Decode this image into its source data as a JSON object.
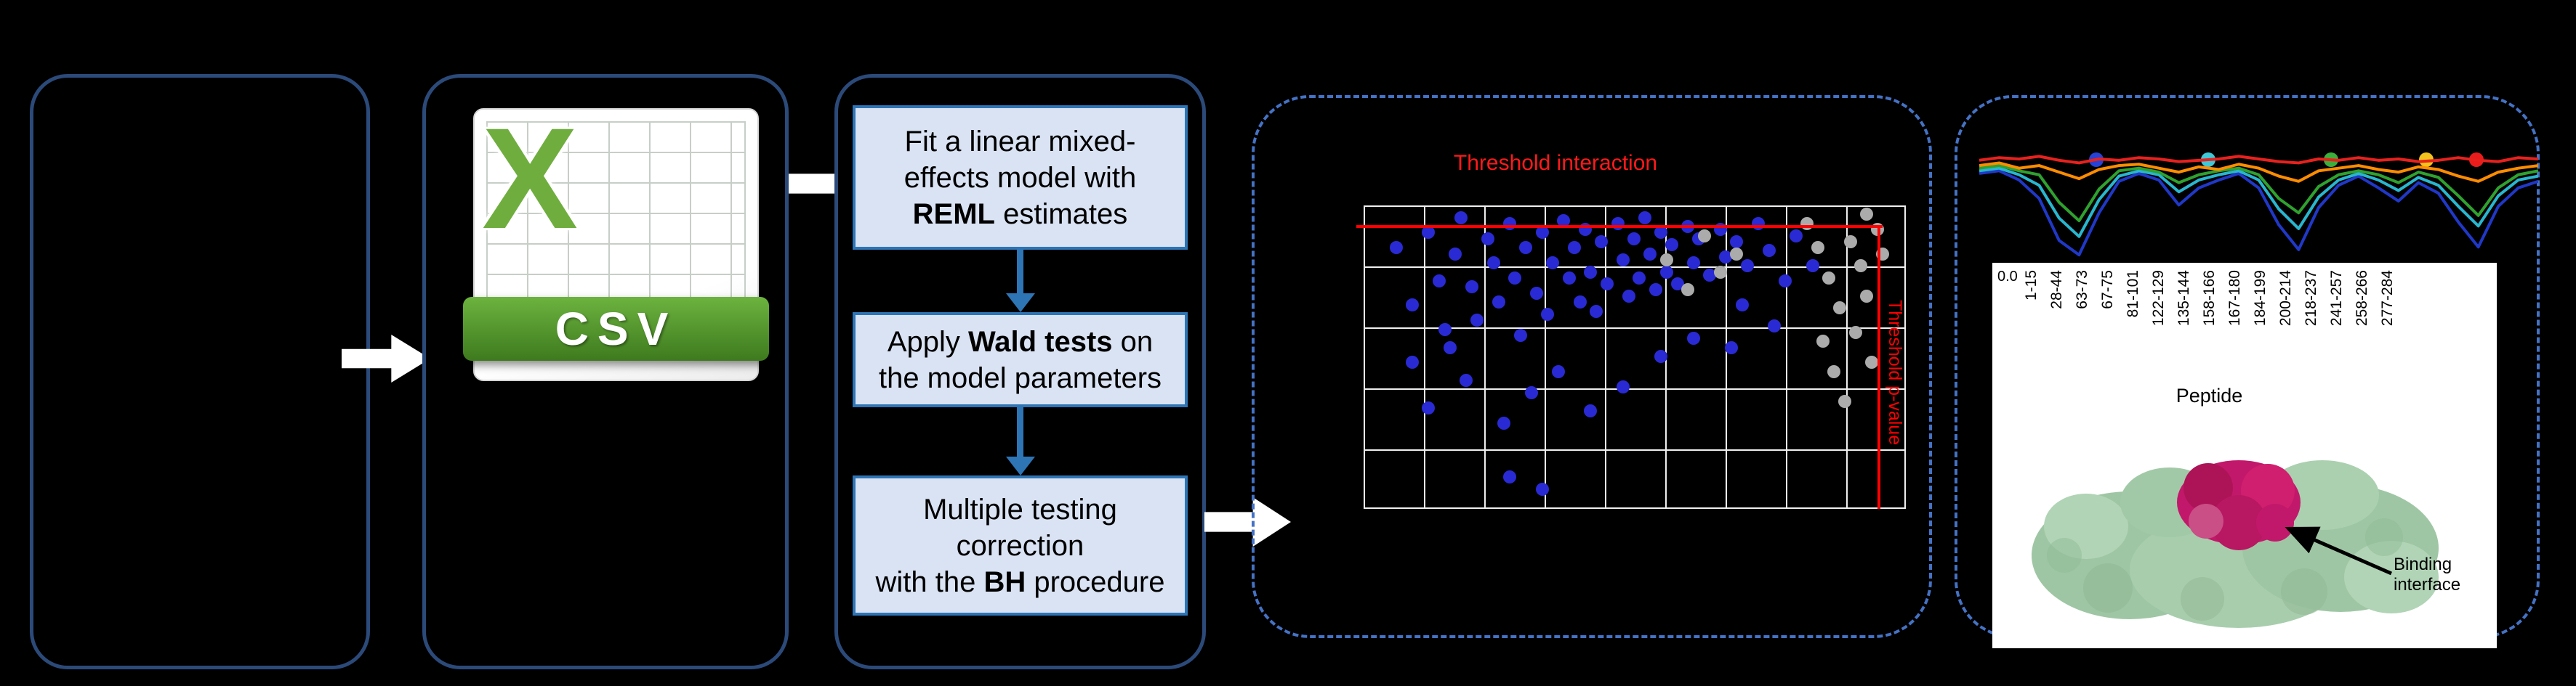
{
  "csv": {
    "x_letter": "X",
    "label": "CSV"
  },
  "model": {
    "step1": {
      "l1": "Fit a linear mixed-",
      "l2": "effects model with",
      "l3a": "REML",
      "l3b": " estimates"
    },
    "step2": {
      "l1a": "Apply ",
      "l1b": "Wald tests",
      "l1c": " on",
      "l2": "the model parameters"
    },
    "step3": {
      "l1": "Multiple testing",
      "l2": "correction",
      "l3a": "with the ",
      "l3b": "BH",
      "l3c": " procedure"
    }
  },
  "scatter": {
    "title": "Threshold interaction",
    "vline_label": "Threshold p-value",
    "threshold_color": "#FF0000",
    "point_color_blue": "#2A2AD4",
    "point_color_gray": "#ABABAB",
    "blue_points": [
      [
        6,
        14
      ],
      [
        9,
        33
      ],
      [
        12,
        9
      ],
      [
        14,
        25
      ],
      [
        15,
        41
      ],
      [
        17,
        16
      ],
      [
        18,
        4
      ],
      [
        20,
        27
      ],
      [
        21,
        38
      ],
      [
        23,
        11
      ],
      [
        24,
        19
      ],
      [
        25,
        32
      ],
      [
        27,
        6
      ],
      [
        28,
        24
      ],
      [
        29,
        43
      ],
      [
        30,
        14
      ],
      [
        32,
        29
      ],
      [
        33,
        9
      ],
      [
        34,
        36
      ],
      [
        35,
        19
      ],
      [
        37,
        5
      ],
      [
        38,
        24
      ],
      [
        39,
        14
      ],
      [
        40,
        32
      ],
      [
        41,
        8
      ],
      [
        42,
        22
      ],
      [
        43,
        35
      ],
      [
        44,
        12
      ],
      [
        45,
        26
      ],
      [
        47,
        6
      ],
      [
        48,
        18
      ],
      [
        49,
        30
      ],
      [
        50,
        11
      ],
      [
        51,
        24
      ],
      [
        52,
        4
      ],
      [
        53,
        16
      ],
      [
        54,
        28
      ],
      [
        55,
        9
      ],
      [
        56,
        22
      ],
      [
        57,
        13
      ],
      [
        58,
        26
      ],
      [
        60,
        7
      ],
      [
        61,
        19
      ],
      [
        62,
        11
      ],
      [
        64,
        23
      ],
      [
        66,
        8
      ],
      [
        67,
        17
      ],
      [
        69,
        12
      ],
      [
        71,
        20
      ],
      [
        73,
        6
      ],
      [
        9,
        52
      ],
      [
        12,
        67
      ],
      [
        19,
        58
      ],
      [
        26,
        72
      ],
      [
        31,
        62
      ],
      [
        36,
        55
      ],
      [
        42,
        68
      ],
      [
        48,
        60
      ],
      [
        27,
        90
      ],
      [
        33,
        94
      ],
      [
        55,
        50
      ],
      [
        61,
        44
      ],
      [
        16,
        47
      ],
      [
        70,
        33
      ],
      [
        75,
        15
      ],
      [
        78,
        25
      ],
      [
        80,
        10
      ],
      [
        83,
        20
      ],
      [
        76,
        40
      ],
      [
        68,
        47
      ]
    ],
    "gray_points": [
      [
        56,
        18
      ],
      [
        60,
        28
      ],
      [
        63,
        10
      ],
      [
        66,
        22
      ],
      [
        69,
        16
      ],
      [
        82,
        6
      ],
      [
        84,
        14
      ],
      [
        86,
        24
      ],
      [
        88,
        34
      ],
      [
        85,
        45
      ],
      [
        87,
        55
      ],
      [
        89,
        65
      ],
      [
        90,
        12
      ],
      [
        92,
        20
      ],
      [
        93,
        30
      ],
      [
        91,
        42
      ],
      [
        94,
        52
      ],
      [
        95,
        8
      ],
      [
        93,
        3
      ],
      [
        96,
        16
      ]
    ]
  },
  "profile_chart": {
    "type": "line",
    "dot_markers": [
      {
        "x": 21,
        "color": "#2742D6"
      },
      {
        "x": 41,
        "color": "#3FC8D8"
      },
      {
        "x": 63,
        "color": "#3CAE3C"
      },
      {
        "x": 80,
        "color": "#F2C21D"
      },
      {
        "x": 89,
        "color": "#EA1C1C"
      }
    ],
    "series": [
      {
        "name": "blue",
        "color": "#2038C8",
        "values": [
          68,
          70,
          63,
          49,
          17,
          6,
          38,
          62,
          68,
          63,
          44,
          57,
          63,
          68,
          57,
          29,
          10,
          42,
          59,
          66,
          57,
          47,
          61,
          53,
          31,
          12,
          43,
          57,
          62
        ]
      },
      {
        "name": "cyan",
        "color": "#29B6CE",
        "values": [
          70,
          72,
          67,
          59,
          34,
          20,
          48,
          66,
          70,
          67,
          54,
          63,
          67,
          70,
          63,
          41,
          26,
          50,
          63,
          68,
          63,
          55,
          65,
          59,
          43,
          28,
          51,
          63,
          66
        ]
      },
      {
        "name": "green",
        "color": "#2FA12F",
        "values": [
          72,
          74,
          70,
          67,
          46,
          32,
          56,
          70,
          72,
          69,
          61,
          67,
          70,
          72,
          67,
          49,
          38,
          58,
          67,
          70,
          67,
          61,
          69,
          65,
          51,
          36,
          57,
          67,
          70
        ]
      },
      {
        "name": "orange",
        "color": "#FF8C00",
        "values": [
          74,
          76,
          72,
          74,
          69,
          64,
          71,
          74,
          75,
          72,
          69,
          73,
          71,
          75,
          72,
          66,
          62,
          70,
          72,
          74,
          71,
          69,
          73,
          71,
          66,
          62,
          69,
          72,
          74
        ]
      },
      {
        "name": "red",
        "color": "#E8211D",
        "values": [
          78,
          80,
          79,
          81,
          78,
          76,
          79,
          78,
          80,
          79,
          77,
          78,
          79,
          81,
          79,
          77,
          76,
          79,
          78,
          80,
          78,
          79,
          77,
          78,
          80,
          78,
          77,
          80,
          79
        ]
      }
    ]
  },
  "peptide_panel": {
    "y_tick": "0.0",
    "tick_labels": [
      "1-15",
      "28-44",
      "63-73",
      "67-75",
      "81-101",
      "122-129",
      "135-144",
      "158-166",
      "167-180",
      "184-199",
      "200-214",
      "218-237",
      "241-257",
      "258-266",
      "277-284"
    ],
    "axis_label": "Peptide",
    "annotation_line1": "Binding",
    "annotation_line2": "interface"
  }
}
